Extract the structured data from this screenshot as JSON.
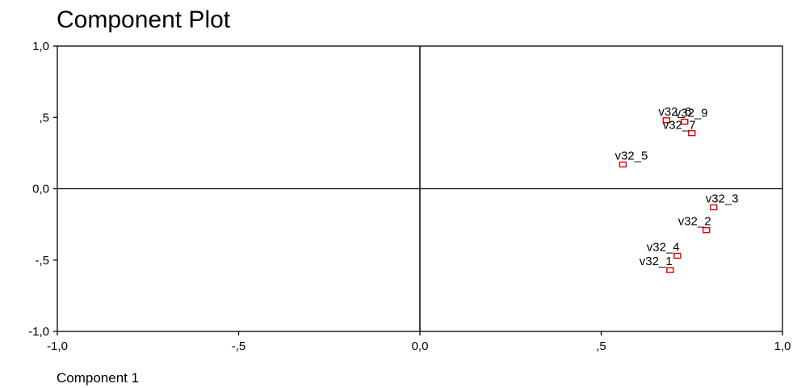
{
  "chart_data": {
    "type": "scatter",
    "title": "Component Plot",
    "xlabel": "Component 1",
    "ylabel": "",
    "xlim": [
      -1.0,
      1.0
    ],
    "ylim": [
      -1.0,
      1.0
    ],
    "x_ticks": [
      -1.0,
      -0.5,
      0.0,
      0.5,
      1.0
    ],
    "x_tick_labels": [
      "-1,0",
      "-,5",
      "0,0",
      ",5",
      "1,0"
    ],
    "y_ticks": [
      -1.0,
      -0.5,
      0.0,
      0.5,
      1.0
    ],
    "y_tick_labels": [
      "-1,0",
      "-,5",
      "0,0",
      ",5",
      "1,0"
    ],
    "grid": false,
    "reference_lines": [
      0.0
    ],
    "marker_color": "#e00000",
    "points": [
      {
        "label": "v32_6",
        "x": 0.68,
        "y": 0.48
      },
      {
        "label": "v32_9",
        "x": 0.73,
        "y": 0.47
      },
      {
        "label": "v32_7",
        "x": 0.75,
        "y": 0.39
      },
      {
        "label": "v32_5",
        "x": 0.56,
        "y": 0.17
      },
      {
        "label": "v32_3",
        "x": 0.81,
        "y": -0.13
      },
      {
        "label": "v32_2",
        "x": 0.79,
        "y": -0.29
      },
      {
        "label": "v32_4",
        "x": 0.71,
        "y": -0.47
      },
      {
        "label": "v32_1",
        "x": 0.69,
        "y": -0.57
      }
    ]
  }
}
